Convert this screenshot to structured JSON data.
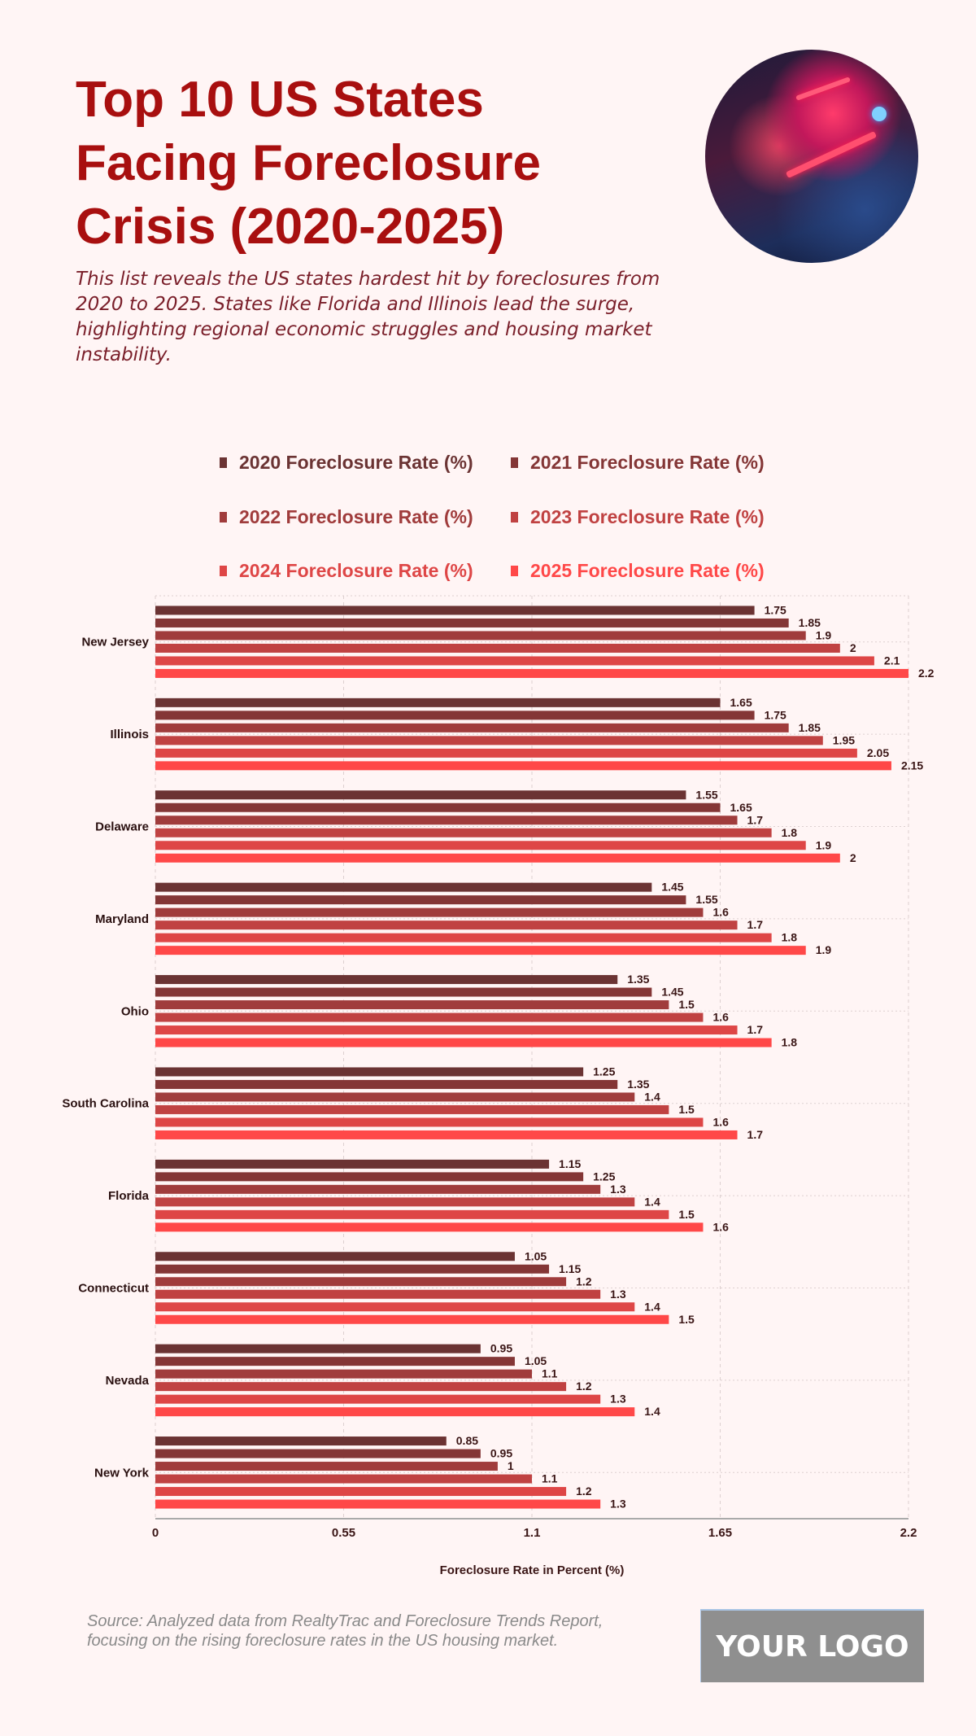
{
  "header": {
    "title": "Top 10 US States Facing Foreclosure Crisis (2020-2025)",
    "subtitle": "This list reveals the US states hardest hit by foreclosures from 2020 to 2025. States like Florida and Illinois lead the surge, highlighting regional economic struggles and housing market instability."
  },
  "footer": {
    "source": "Source: Analyzed data from RealtyTrac and Foreclosure Trends Report, focusing on the rising foreclosure rates in the US housing market.",
    "logo": "YOUR LOGO"
  },
  "colors": {
    "background": "#fff5f5",
    "title": "#a80f0f",
    "value_label": "#3a1515"
  },
  "chart_data": {
    "type": "bar",
    "orientation": "horizontal",
    "categories": [
      "New Jersey",
      "Illinois",
      "Delaware",
      "Maryland",
      "Ohio",
      "South Carolina",
      "Florida",
      "Connecticut",
      "Nevada",
      "New York"
    ],
    "series": [
      {
        "name": "2020 Foreclosure Rate (%)",
        "color": "#6b3333",
        "values": [
          1.75,
          1.65,
          1.55,
          1.45,
          1.35,
          1.25,
          1.15,
          1.05,
          0.95,
          0.85
        ]
      },
      {
        "name": "2021 Foreclosure Rate (%)",
        "color": "#843636",
        "values": [
          1.85,
          1.75,
          1.65,
          1.55,
          1.45,
          1.35,
          1.25,
          1.15,
          1.05,
          0.95
        ]
      },
      {
        "name": "2022 Foreclosure Rate (%)",
        "color": "#a03c3c",
        "values": [
          1.9,
          1.85,
          1.7,
          1.6,
          1.5,
          1.4,
          1.3,
          1.2,
          1.1,
          1
        ]
      },
      {
        "name": "2023 Foreclosure Rate (%)",
        "color": "#c04242",
        "values": [
          2,
          1.95,
          1.8,
          1.7,
          1.6,
          1.5,
          1.4,
          1.3,
          1.2,
          1.1
        ]
      },
      {
        "name": "2024 Foreclosure Rate (%)",
        "color": "#de4646",
        "values": [
          2.1,
          2.05,
          1.9,
          1.8,
          1.7,
          1.6,
          1.5,
          1.4,
          1.3,
          1.2
        ]
      },
      {
        "name": "2025 Foreclosure Rate (%)",
        "color": "#ff4848",
        "values": [
          2.2,
          2.15,
          2,
          1.9,
          1.8,
          1.7,
          1.6,
          1.5,
          1.4,
          1.3
        ]
      }
    ],
    "xlabel": "Foreclosure Rate in Percent (%)",
    "ylabel": "",
    "xlim": [
      0,
      2.2
    ],
    "xticks": [
      "0",
      "0.55",
      "1.1",
      "1.65",
      "2.2"
    ],
    "grid": true,
    "legend_placement": "top",
    "data_labels": true
  }
}
